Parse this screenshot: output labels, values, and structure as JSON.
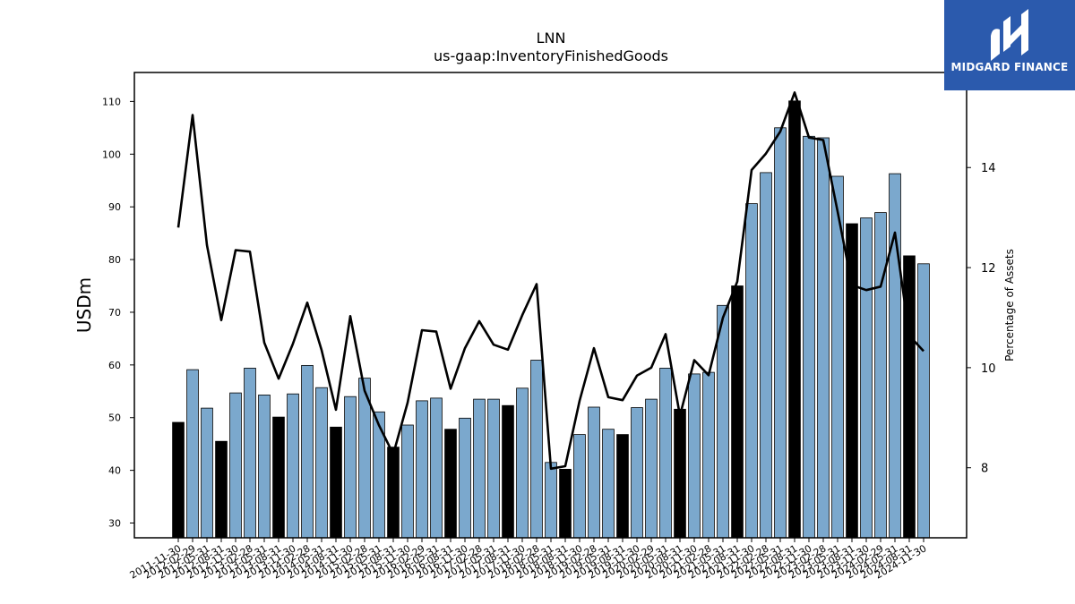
{
  "chart_data": {
    "type": "bar",
    "title": "LNN",
    "subtitle": "us-gaap:InventoryFinishedGoods",
    "ylabel": "USDm",
    "y2label": "Percentage of Assets",
    "ylim": [
      27.2,
      115.5
    ],
    "y2lim": [
      6.6,
      15.9
    ],
    "yticks": [
      30,
      40,
      50,
      60,
      70,
      80,
      90,
      100,
      110
    ],
    "y2ticks": [
      8,
      10,
      12,
      14
    ],
    "bar_colors": {
      "fiscal_year_end": "#000000",
      "other": "#7ba8cd"
    },
    "line_color": "#000000",
    "categories": [
      "2011-11-30",
      "2012-02-29",
      "2012-05-31",
      "2012-08-31",
      "2012-11-30",
      "2013-02-28",
      "2013-05-31",
      "2013-08-31",
      "2013-11-30",
      "2014-02-28",
      "2014-05-31",
      "2014-08-31",
      "2014-11-30",
      "2015-02-28",
      "2015-05-31",
      "2015-08-31",
      "2015-11-30",
      "2016-02-29",
      "2016-05-31",
      "2016-08-31",
      "2016-11-30",
      "2017-02-28",
      "2017-05-31",
      "2017-08-31",
      "2017-11-30",
      "2018-02-28",
      "2018-05-31",
      "2018-08-31",
      "2018-11-30",
      "2019-02-28",
      "2019-05-31",
      "2019-08-31",
      "2019-11-30",
      "2020-02-29",
      "2020-05-31",
      "2020-08-31",
      "2020-11-30",
      "2021-02-28",
      "2021-05-31",
      "2021-08-31",
      "2021-11-30",
      "2022-02-28",
      "2022-05-31",
      "2022-08-31",
      "2022-11-30",
      "2023-02-28",
      "2023-05-31",
      "2023-08-31",
      "2023-11-30",
      "2024-02-29",
      "2024-05-31",
      "2024-08-31",
      "2024-11-30"
    ],
    "series": [
      {
        "kind": "bar",
        "axis": "left",
        "values": [
          49.1,
          59.1,
          51.8,
          45.5,
          54.7,
          59.4,
          54.3,
          50.1,
          54.5,
          59.9,
          55.7,
          48.2,
          54.0,
          57.5,
          51.1,
          44.4,
          48.6,
          53.2,
          53.7,
          47.8,
          49.9,
          53.5,
          53.5,
          52.3,
          55.6,
          60.9,
          41.5,
          40.2,
          46.8,
          52.0,
          47.8,
          46.8,
          51.9,
          53.5,
          59.4,
          51.6,
          58.3,
          58.6,
          71.3,
          75.0,
          90.6,
          96.5,
          105.0,
          110.1,
          103.4,
          103.1,
          95.8,
          86.8,
          87.9,
          88.9,
          96.3,
          80.7,
          79.2
        ],
        "fiscal_year_end": [
          true,
          false,
          false,
          true,
          false,
          false,
          false,
          true,
          false,
          false,
          false,
          true,
          false,
          false,
          false,
          true,
          false,
          false,
          false,
          true,
          false,
          false,
          false,
          true,
          false,
          false,
          false,
          true,
          false,
          false,
          false,
          true,
          false,
          false,
          false,
          true,
          false,
          false,
          false,
          true,
          false,
          false,
          false,
          true,
          false,
          false,
          false,
          true,
          false,
          false,
          false,
          true,
          false
        ]
      },
      {
        "kind": "line",
        "axis": "right",
        "values": [
          12.8,
          15.05,
          12.45,
          10.95,
          12.35,
          12.32,
          10.5,
          9.78,
          10.48,
          11.3,
          10.35,
          9.16,
          11.03,
          9.54,
          8.85,
          8.27,
          9.3,
          10.75,
          10.72,
          9.58,
          10.39,
          10.93,
          10.46,
          10.36,
          11.05,
          11.67,
          7.98,
          8.03,
          9.34,
          10.39,
          9.41,
          9.35,
          9.84,
          10.0,
          10.67,
          9.04,
          10.15,
          9.85,
          11.0,
          11.72,
          13.95,
          14.28,
          14.72,
          15.5,
          14.6,
          14.55,
          13.12,
          11.65,
          11.55,
          11.62,
          12.7,
          10.64,
          10.33
        ]
      }
    ]
  },
  "logo": {
    "text": "MIDGARD FINANCE"
  }
}
